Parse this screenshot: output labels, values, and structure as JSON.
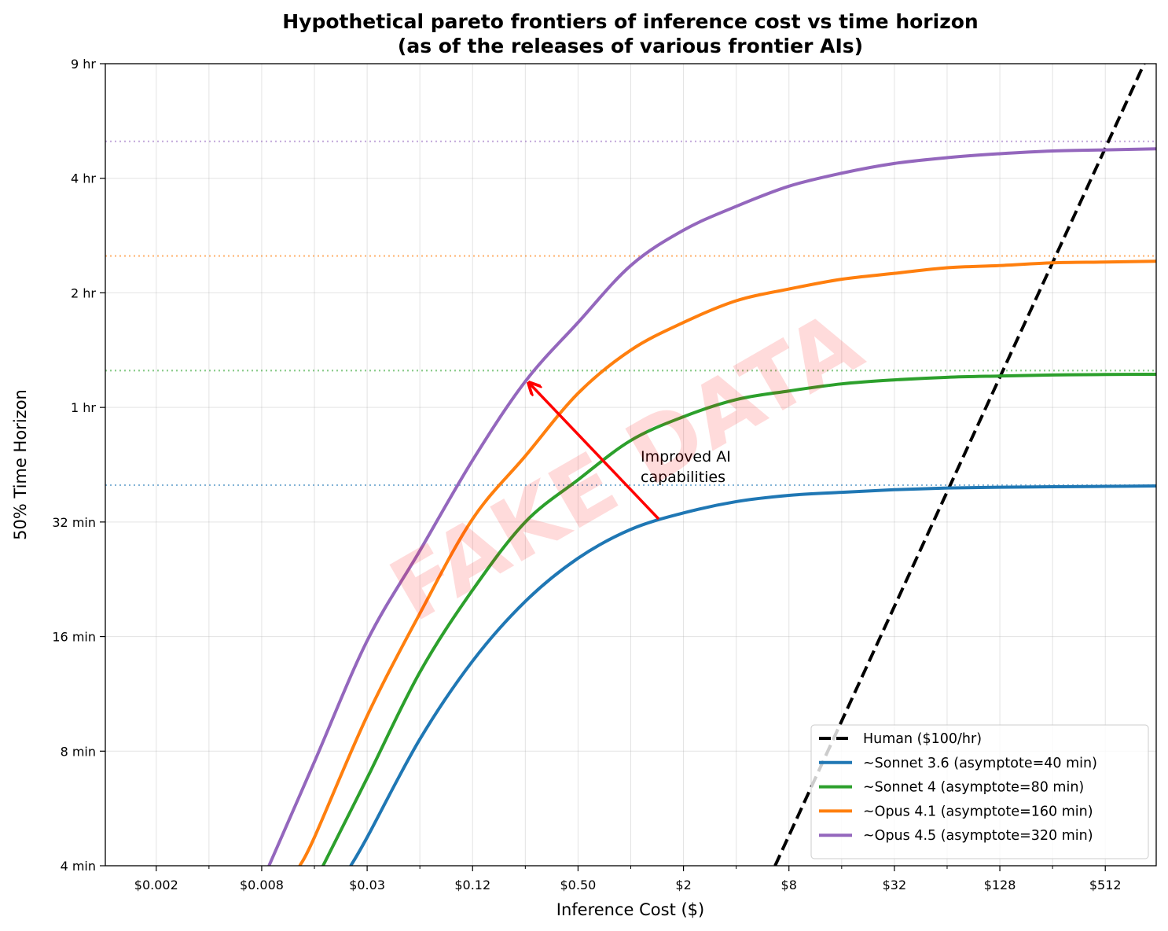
{
  "chart_data": {
    "type": "line",
    "title": "Hypothetical pareto frontiers of inference cost vs time horizon",
    "subtitle": "(as of the releases of various frontier AIs)",
    "xlabel": "Inference Cost ($)",
    "ylabel": "50% Time Horizon",
    "xscale": "log",
    "yscale": "log",
    "xlim": [
      0.001,
      1000
    ],
    "ylim": [
      4,
      512
    ],
    "xticks": [
      {
        "value": 0.001953125,
        "label": "$0.002"
      },
      {
        "value": 0.0078125,
        "label": "$0.008"
      },
      {
        "value": 0.03125,
        "label": "$0.03"
      },
      {
        "value": 0.125,
        "label": "$0.12"
      },
      {
        "value": 0.5,
        "label": "$0.50"
      },
      {
        "value": 2,
        "label": "$2"
      },
      {
        "value": 8,
        "label": "$8"
      },
      {
        "value": 32,
        "label": "$32"
      },
      {
        "value": 128,
        "label": "$128"
      },
      {
        "value": 512,
        "label": "$512"
      }
    ],
    "xminorticks": [
      0.00390625,
      0.015625,
      0.0625,
      0.25,
      1,
      4,
      16,
      64,
      256
    ],
    "yticks": [
      {
        "value": 4,
        "label": "4 min"
      },
      {
        "value": 8,
        "label": "8 min"
      },
      {
        "value": 16,
        "label": "16 min"
      },
      {
        "value": 32,
        "label": "32 min"
      },
      {
        "value": 64,
        "label": "1 hr"
      },
      {
        "value": 128,
        "label": "2 hr"
      },
      {
        "value": 256,
        "label": "4 hr"
      },
      {
        "value": 512,
        "label": "9 hr"
      }
    ],
    "grid": true,
    "legend": "lower right",
    "annotation": [
      "Improved AI",
      "capabilities"
    ],
    "annotation_color": "#ff0000",
    "watermark": "FAKE DATA",
    "series": [
      {
        "name": "Human ($100/hr)",
        "color": "#000000",
        "dashed": true,
        "x": [
          6.6667,
          853.33
        ],
        "values": [
          4,
          512
        ]
      },
      {
        "name": "~Sonnet 3.6 (asymptote=40 min)",
        "color": "#1f77b4",
        "asymptote": 40,
        "x": [
          0.0252,
          0.03125,
          0.0625,
          0.125,
          0.25,
          0.5,
          1,
          2,
          4,
          8,
          16,
          32,
          64,
          128,
          256,
          512,
          1000
        ],
        "values": [
          4,
          4.75,
          8.6,
          13.8,
          19.8,
          25.7,
          30.6,
          33.8,
          36.2,
          37.6,
          38.3,
          38.9,
          39.3,
          39.5,
          39.6,
          39.7,
          39.8
        ]
      },
      {
        "name": "~Sonnet 4 (asymptote=80 min)",
        "color": "#2ca02c",
        "asymptote": 80,
        "x": [
          0.0175,
          0.03125,
          0.0625,
          0.125,
          0.25,
          0.5,
          1,
          2,
          4,
          8,
          16,
          32,
          64,
          128,
          256,
          512,
          1000
        ],
        "values": [
          4,
          6.8,
          12.9,
          21.2,
          32,
          41.3,
          52.4,
          60.5,
          67.1,
          70.7,
          73.8,
          75.6,
          76.8,
          77.4,
          77.9,
          78.1,
          78.2
        ]
      },
      {
        "name": "~Opus 4.1 (asymptote=160 min)",
        "color": "#ff7f0e",
        "asymptote": 160,
        "x": [
          0.0129,
          0.015625,
          0.03125,
          0.0625,
          0.125,
          0.25,
          0.5,
          1,
          2,
          4,
          8,
          16,
          32,
          64,
          128,
          256,
          512,
          1000
        ],
        "values": [
          4,
          4.75,
          9.9,
          18.4,
          32.6,
          47.7,
          69.7,
          90.5,
          107,
          122,
          131,
          139,
          144,
          149,
          151,
          153.5,
          154.2,
          155
        ]
      },
      {
        "name": "~Opus 4.5 (asymptote=320 min)",
        "color": "#9467bd",
        "asymptote": 320,
        "x": [
          0.0086,
          0.015625,
          0.03125,
          0.0625,
          0.125,
          0.25,
          0.5,
          1,
          2,
          4,
          8,
          16,
          32,
          64,
          128,
          256,
          512,
          1000
        ],
        "values": [
          4,
          7.5,
          15.6,
          26.9,
          46.5,
          74.9,
          107,
          151,
          187,
          216,
          244,
          264,
          280,
          290,
          297,
          302,
          304,
          306
        ]
      }
    ]
  }
}
